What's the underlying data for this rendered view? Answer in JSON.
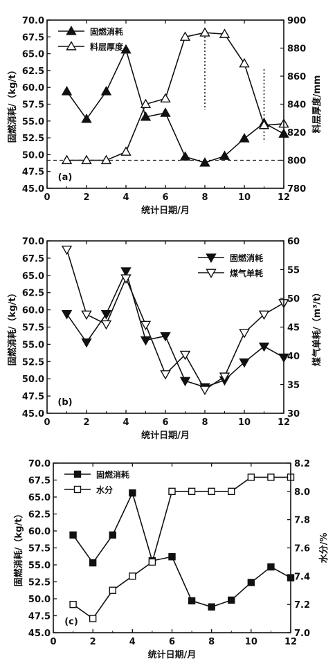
{
  "chart_data": [
    {
      "type": "line",
      "panel_label": "(a)",
      "xlabel": "统计日期/月",
      "ylabel_left": "固燃消耗/（kg/t）",
      "ylabel_right": "料层厚度/mm",
      "xlim": [
        0,
        12
      ],
      "xticks": [
        "0",
        "2",
        "4",
        "6",
        "8",
        "10",
        "12"
      ],
      "ylim_left": [
        45,
        70
      ],
      "yticks_left": [
        "45.0",
        "47.5",
        "50.0",
        "52.5",
        "55.0",
        "57.5",
        "60.0",
        "62.5",
        "65.0",
        "67.5",
        "70.0"
      ],
      "ylim_right": [
        780,
        900
      ],
      "yticks_right": [
        "780",
        "800",
        "820",
        "840",
        "860",
        "880",
        "900"
      ],
      "x": [
        1,
        2,
        3,
        4,
        5,
        6,
        7,
        8,
        9,
        10,
        11,
        12
      ],
      "series": [
        {
          "name": "固燃消耗",
          "axis": "left",
          "marker": "triangle-up-filled",
          "values": [
            59.4,
            55.3,
            59.4,
            65.6,
            55.6,
            56.2,
            49.7,
            48.8,
            49.8,
            52.4,
            54.7,
            53.1
          ]
        },
        {
          "name": "料层厚度",
          "axis": "right",
          "marker": "triangle-up-open",
          "values": [
            800,
            800,
            800,
            806,
            840,
            844,
            888,
            891,
            890,
            869,
            825,
            826
          ]
        }
      ],
      "reference_line": {
        "axis": "right",
        "value": 800,
        "style": "dashed"
      },
      "vertical_markers": [
        {
          "x": 8,
          "from_right": 836,
          "to_right": 893,
          "style": "dotted"
        },
        {
          "x": 11,
          "from_right": 813,
          "to_right": 865,
          "style": "dotted"
        }
      ],
      "legend_position": "top-left"
    },
    {
      "type": "line",
      "panel_label": "(b)",
      "xlabel": "统计日期/月",
      "ylabel_left": "固燃消耗/（kg/t）",
      "ylabel_right": "煤气单耗/（m³/t）",
      "xlim": [
        0,
        12
      ],
      "xticks": [
        "0",
        "2",
        "4",
        "6",
        "8",
        "10",
        "12"
      ],
      "ylim_left": [
        45,
        70
      ],
      "yticks_left": [
        "45.0",
        "47.5",
        "50.0",
        "52.5",
        "55.0",
        "57.5",
        "60.0",
        "62.5",
        "65.0",
        "67.5",
        "70.0"
      ],
      "ylim_right": [
        30,
        60
      ],
      "yticks_right": [
        "30",
        "35",
        "40",
        "45",
        "50",
        "55",
        "60"
      ],
      "x": [
        1,
        2,
        3,
        4,
        5,
        6,
        7,
        8,
        9,
        10,
        11,
        12
      ],
      "series": [
        {
          "name": "固燃消耗",
          "axis": "left",
          "marker": "triangle-down-filled",
          "values": [
            59.4,
            55.3,
            59.4,
            65.6,
            55.6,
            56.2,
            49.7,
            48.8,
            49.8,
            52.4,
            54.7,
            53.1
          ]
        },
        {
          "name": "煤气单耗",
          "axis": "right",
          "marker": "triangle-down-open",
          "values": [
            58.5,
            47.2,
            45.5,
            53.5,
            45.4,
            36.8,
            40.2,
            34.1,
            36.4,
            44.0,
            47.2,
            49.2
          ]
        }
      ],
      "legend_position": "top-right"
    },
    {
      "type": "line",
      "panel_label": "(c)",
      "xlabel": "统计日期/月",
      "ylabel_left": "固燃消耗/（kg/t）",
      "ylabel_right": "水分/%",
      "xlim": [
        0,
        12
      ],
      "xticks": [
        "0",
        "2",
        "4",
        "6",
        "8",
        "10",
        "12"
      ],
      "ylim_left": [
        45,
        70
      ],
      "yticks_left": [
        "45.0",
        "47.5",
        "50.0",
        "52.5",
        "55.0",
        "57.5",
        "60.0",
        "62.5",
        "65.0",
        "67.5",
        "70.0"
      ],
      "ylim_right": [
        7.0,
        8.2
      ],
      "yticks_right": [
        "7.0",
        "7.2",
        "7.4",
        "7.6",
        "7.8",
        "8.0",
        "8.2"
      ],
      "x": [
        1,
        2,
        3,
        4,
        5,
        6,
        7,
        8,
        9,
        10,
        11,
        12
      ],
      "series": [
        {
          "name": "固燃消耗",
          "axis": "left",
          "marker": "square-filled",
          "values": [
            59.4,
            55.3,
            59.4,
            65.6,
            55.6,
            56.2,
            49.7,
            48.8,
            49.8,
            52.4,
            54.7,
            53.1
          ]
        },
        {
          "name": "水分",
          "axis": "right",
          "marker": "square-open",
          "values": [
            7.2,
            7.1,
            7.3,
            7.4,
            7.5,
            8.0,
            8.0,
            8.0,
            8.0,
            8.1,
            8.1,
            8.1
          ]
        }
      ],
      "legend_position": "top-left"
    }
  ]
}
